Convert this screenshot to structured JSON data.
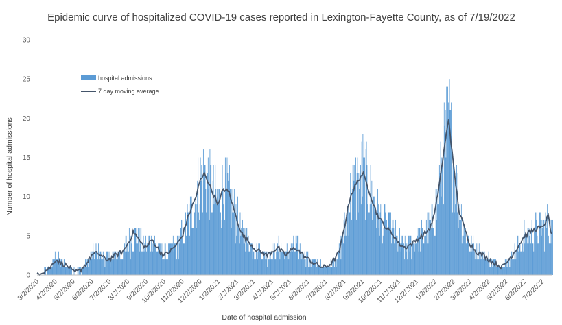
{
  "chart_data": {
    "type": "bar",
    "title": "Epidemic curve of hospitalized COVID-19 cases reported in Lexington-Fayette County, as of 7/19/2022",
    "xlabel": "Date of hospital admission",
    "ylabel": "Number of hospital admissions",
    "ylim": [
      0,
      30
    ],
    "yticks": [
      "0",
      "5",
      "10",
      "15",
      "20",
      "25",
      "30"
    ],
    "xlim": [
      "3/2/2020",
      "7/19/2022"
    ],
    "x_tick_labels": [
      "3/2/2020",
      "4/2/2020",
      "5/2/2020",
      "6/2/2020",
      "7/2/2020",
      "8/2/2020",
      "9/2/2020",
      "10/2/2020",
      "11/2/2020",
      "12/2/2020",
      "1/2/2021",
      "2/2/2021",
      "3/2/2021",
      "4/2/2021",
      "5/2/2021",
      "6/2/2021",
      "7/2/2021",
      "8/2/2021",
      "9/2/2021",
      "10/2/2021",
      "11/2/2021",
      "12/2/2021",
      "1/2/2022",
      "2/2/2022",
      "3/2/2022",
      "4/2/2022",
      "5/2/2022",
      "6/2/2022",
      "7/2/2022"
    ],
    "grid": false,
    "legend_position": "top-left",
    "series": [
      {
        "name": "hospital admissions",
        "type": "bar",
        "color": "#5b9bd5",
        "anchors": [
          [
            "3/2/2020",
            0
          ],
          [
            "3/15/2020",
            0.5
          ],
          [
            "3/25/2020",
            1
          ],
          [
            "4/2/2020",
            2.5
          ],
          [
            "4/12/2020",
            1.5
          ],
          [
            "4/25/2020",
            1
          ],
          [
            "5/2/2020",
            0.5
          ],
          [
            "5/12/2020",
            0.5
          ],
          [
            "5/25/2020",
            1.5
          ],
          [
            "6/2/2020",
            2.5
          ],
          [
            "6/12/2020",
            3
          ],
          [
            "6/25/2020",
            2
          ],
          [
            "7/2/2020",
            2
          ],
          [
            "7/12/2020",
            2.5
          ],
          [
            "7/25/2020",
            3
          ],
          [
            "8/2/2020",
            4
          ],
          [
            "8/12/2020",
            5
          ],
          [
            "8/25/2020",
            4
          ],
          [
            "9/2/2020",
            3.5
          ],
          [
            "9/12/2020",
            4.5
          ],
          [
            "9/25/2020",
            3
          ],
          [
            "10/2/2020",
            2.5
          ],
          [
            "10/12/2020",
            3
          ],
          [
            "10/25/2020",
            4
          ],
          [
            "11/2/2020",
            5
          ],
          [
            "11/12/2020",
            7
          ],
          [
            "11/25/2020",
            10
          ],
          [
            "12/2/2020",
            12
          ],
          [
            "12/10/2020",
            13
          ],
          [
            "12/20/2020",
            11
          ],
          [
            "1/2/2021",
            9
          ],
          [
            "1/10/2021",
            11
          ],
          [
            "1/20/2021",
            10
          ],
          [
            "2/2/2021",
            7
          ],
          [
            "2/12/2021",
            5
          ],
          [
            "2/25/2021",
            4
          ],
          [
            "3/2/2021",
            3.5
          ],
          [
            "3/12/2021",
            3
          ],
          [
            "3/25/2021",
            2.5
          ],
          [
            "4/2/2021",
            3
          ],
          [
            "4/12/2021",
            3.5
          ],
          [
            "4/25/2021",
            2.5
          ],
          [
            "5/2/2021",
            3
          ],
          [
            "5/12/2021",
            3.5
          ],
          [
            "5/25/2021",
            2.5
          ],
          [
            "6/2/2021",
            2
          ],
          [
            "6/12/2021",
            1.5
          ],
          [
            "6/25/2021",
            1
          ],
          [
            "7/2/2021",
            1
          ],
          [
            "7/12/2021",
            1.5
          ],
          [
            "7/25/2021",
            3
          ],
          [
            "8/2/2021",
            6
          ],
          [
            "8/12/2021",
            10
          ],
          [
            "8/25/2021",
            12
          ],
          [
            "9/2/2021",
            13
          ],
          [
            "9/12/2021",
            11
          ],
          [
            "9/25/2021",
            8
          ],
          [
            "10/2/2021",
            7
          ],
          [
            "10/12/2021",
            6
          ],
          [
            "10/25/2021",
            5
          ],
          [
            "11/2/2021",
            4
          ],
          [
            "11/12/2021",
            3.5
          ],
          [
            "11/25/2021",
            4
          ],
          [
            "12/2/2021",
            4.5
          ],
          [
            "12/12/2021",
            5
          ],
          [
            "12/25/2021",
            6
          ],
          [
            "1/2/2022",
            8
          ],
          [
            "1/12/2022",
            13
          ],
          [
            "1/25/2022",
            19
          ],
          [
            "2/2/2022",
            14
          ],
          [
            "2/12/2022",
            8
          ],
          [
            "2/25/2022",
            5
          ],
          [
            "3/2/2022",
            4
          ],
          [
            "3/12/2022",
            3
          ],
          [
            "3/25/2022",
            2.5
          ],
          [
            "4/2/2022",
            2
          ],
          [
            "4/12/2022",
            1.5
          ],
          [
            "4/25/2022",
            1
          ],
          [
            "5/2/2022",
            1.5
          ],
          [
            "5/12/2022",
            2.5
          ],
          [
            "5/25/2022",
            4
          ],
          [
            "6/2/2022",
            5
          ],
          [
            "6/12/2022",
            5.5
          ],
          [
            "6/25/2022",
            6
          ],
          [
            "7/2/2022",
            6
          ],
          [
            "7/12/2022",
            6.5
          ],
          [
            "7/19/2022",
            5
          ]
        ]
      },
      {
        "name": "7 day moving average",
        "type": "line",
        "color": "#44546a",
        "points": [
          [
            "3/2/2020",
            0.2
          ],
          [
            "3/15/2020",
            0.5
          ],
          [
            "3/25/2020",
            1
          ],
          [
            "4/2/2020",
            2
          ],
          [
            "4/12/2020",
            1.5
          ],
          [
            "4/25/2020",
            1
          ],
          [
            "5/2/2020",
            0.3
          ],
          [
            "5/12/2020",
            0.5
          ],
          [
            "5/25/2020",
            1.5
          ],
          [
            "6/2/2020",
            2.5
          ],
          [
            "6/12/2020",
            2.8
          ],
          [
            "6/25/2020",
            2
          ],
          [
            "7/2/2020",
            2
          ],
          [
            "7/12/2020",
            2.5
          ],
          [
            "7/25/2020",
            3
          ],
          [
            "8/2/2020",
            4
          ],
          [
            "8/12/2020",
            5.5
          ],
          [
            "8/25/2020",
            4
          ],
          [
            "9/2/2020",
            3.5
          ],
          [
            "9/12/2020",
            4.5
          ],
          [
            "9/25/2020",
            3
          ],
          [
            "10/2/2020",
            2.5
          ],
          [
            "10/12/2020",
            3
          ],
          [
            "10/25/2020",
            4
          ],
          [
            "11/2/2020",
            5
          ],
          [
            "11/12/2020",
            7.5
          ],
          [
            "11/25/2020",
            10
          ],
          [
            "12/2/2020",
            12
          ],
          [
            "12/10/2020",
            13
          ],
          [
            "12/20/2020",
            11
          ],
          [
            "1/2/2021",
            9
          ],
          [
            "1/10/2021",
            11
          ],
          [
            "1/20/2021",
            10.5
          ],
          [
            "2/2/2021",
            7
          ],
          [
            "2/12/2021",
            5
          ],
          [
            "2/25/2021",
            4
          ],
          [
            "3/2/2021",
            3.5
          ],
          [
            "3/12/2021",
            3
          ],
          [
            "3/25/2021",
            2.5
          ],
          [
            "4/2/2021",
            3
          ],
          [
            "4/12/2021",
            3.5
          ],
          [
            "4/25/2021",
            2.5
          ],
          [
            "5/2/2021",
            3
          ],
          [
            "5/12/2021",
            3.5
          ],
          [
            "5/25/2021",
            2.5
          ],
          [
            "6/2/2021",
            2
          ],
          [
            "6/12/2021",
            1.5
          ],
          [
            "6/25/2021",
            1
          ],
          [
            "7/2/2021",
            1
          ],
          [
            "7/12/2021",
            1.5
          ],
          [
            "7/25/2021",
            3
          ],
          [
            "8/2/2021",
            6
          ],
          [
            "8/12/2021",
            10
          ],
          [
            "8/25/2021",
            12
          ],
          [
            "9/2/2021",
            13
          ],
          [
            "9/12/2021",
            11
          ],
          [
            "9/25/2021",
            8
          ],
          [
            "10/2/2021",
            7
          ],
          [
            "10/12/2021",
            6
          ],
          [
            "10/25/2021",
            5
          ],
          [
            "11/2/2021",
            4
          ],
          [
            "11/12/2021",
            3.5
          ],
          [
            "11/25/2021",
            4
          ],
          [
            "12/2/2021",
            4.5
          ],
          [
            "12/12/2021",
            5
          ],
          [
            "12/25/2021",
            6
          ],
          [
            "1/2/2022",
            8
          ],
          [
            "1/12/2022",
            13
          ],
          [
            "1/25/2022",
            20
          ],
          [
            "2/2/2022",
            14
          ],
          [
            "2/12/2022",
            8
          ],
          [
            "2/25/2022",
            5
          ],
          [
            "3/2/2022",
            4
          ],
          [
            "3/12/2022",
            3
          ],
          [
            "3/25/2022",
            2.5
          ],
          [
            "4/2/2022",
            2
          ],
          [
            "4/12/2022",
            1.5
          ],
          [
            "4/25/2022",
            1
          ],
          [
            "5/2/2022",
            1.5
          ],
          [
            "5/12/2022",
            2.5
          ],
          [
            "5/25/2022",
            4
          ],
          [
            "6/2/2022",
            5
          ],
          [
            "6/12/2022",
            5.5
          ],
          [
            "6/25/2022",
            6
          ],
          [
            "7/2/2022",
            6
          ],
          [
            "7/12/2022",
            7.5
          ],
          [
            "7/19/2022",
            4.5
          ]
        ]
      }
    ]
  }
}
